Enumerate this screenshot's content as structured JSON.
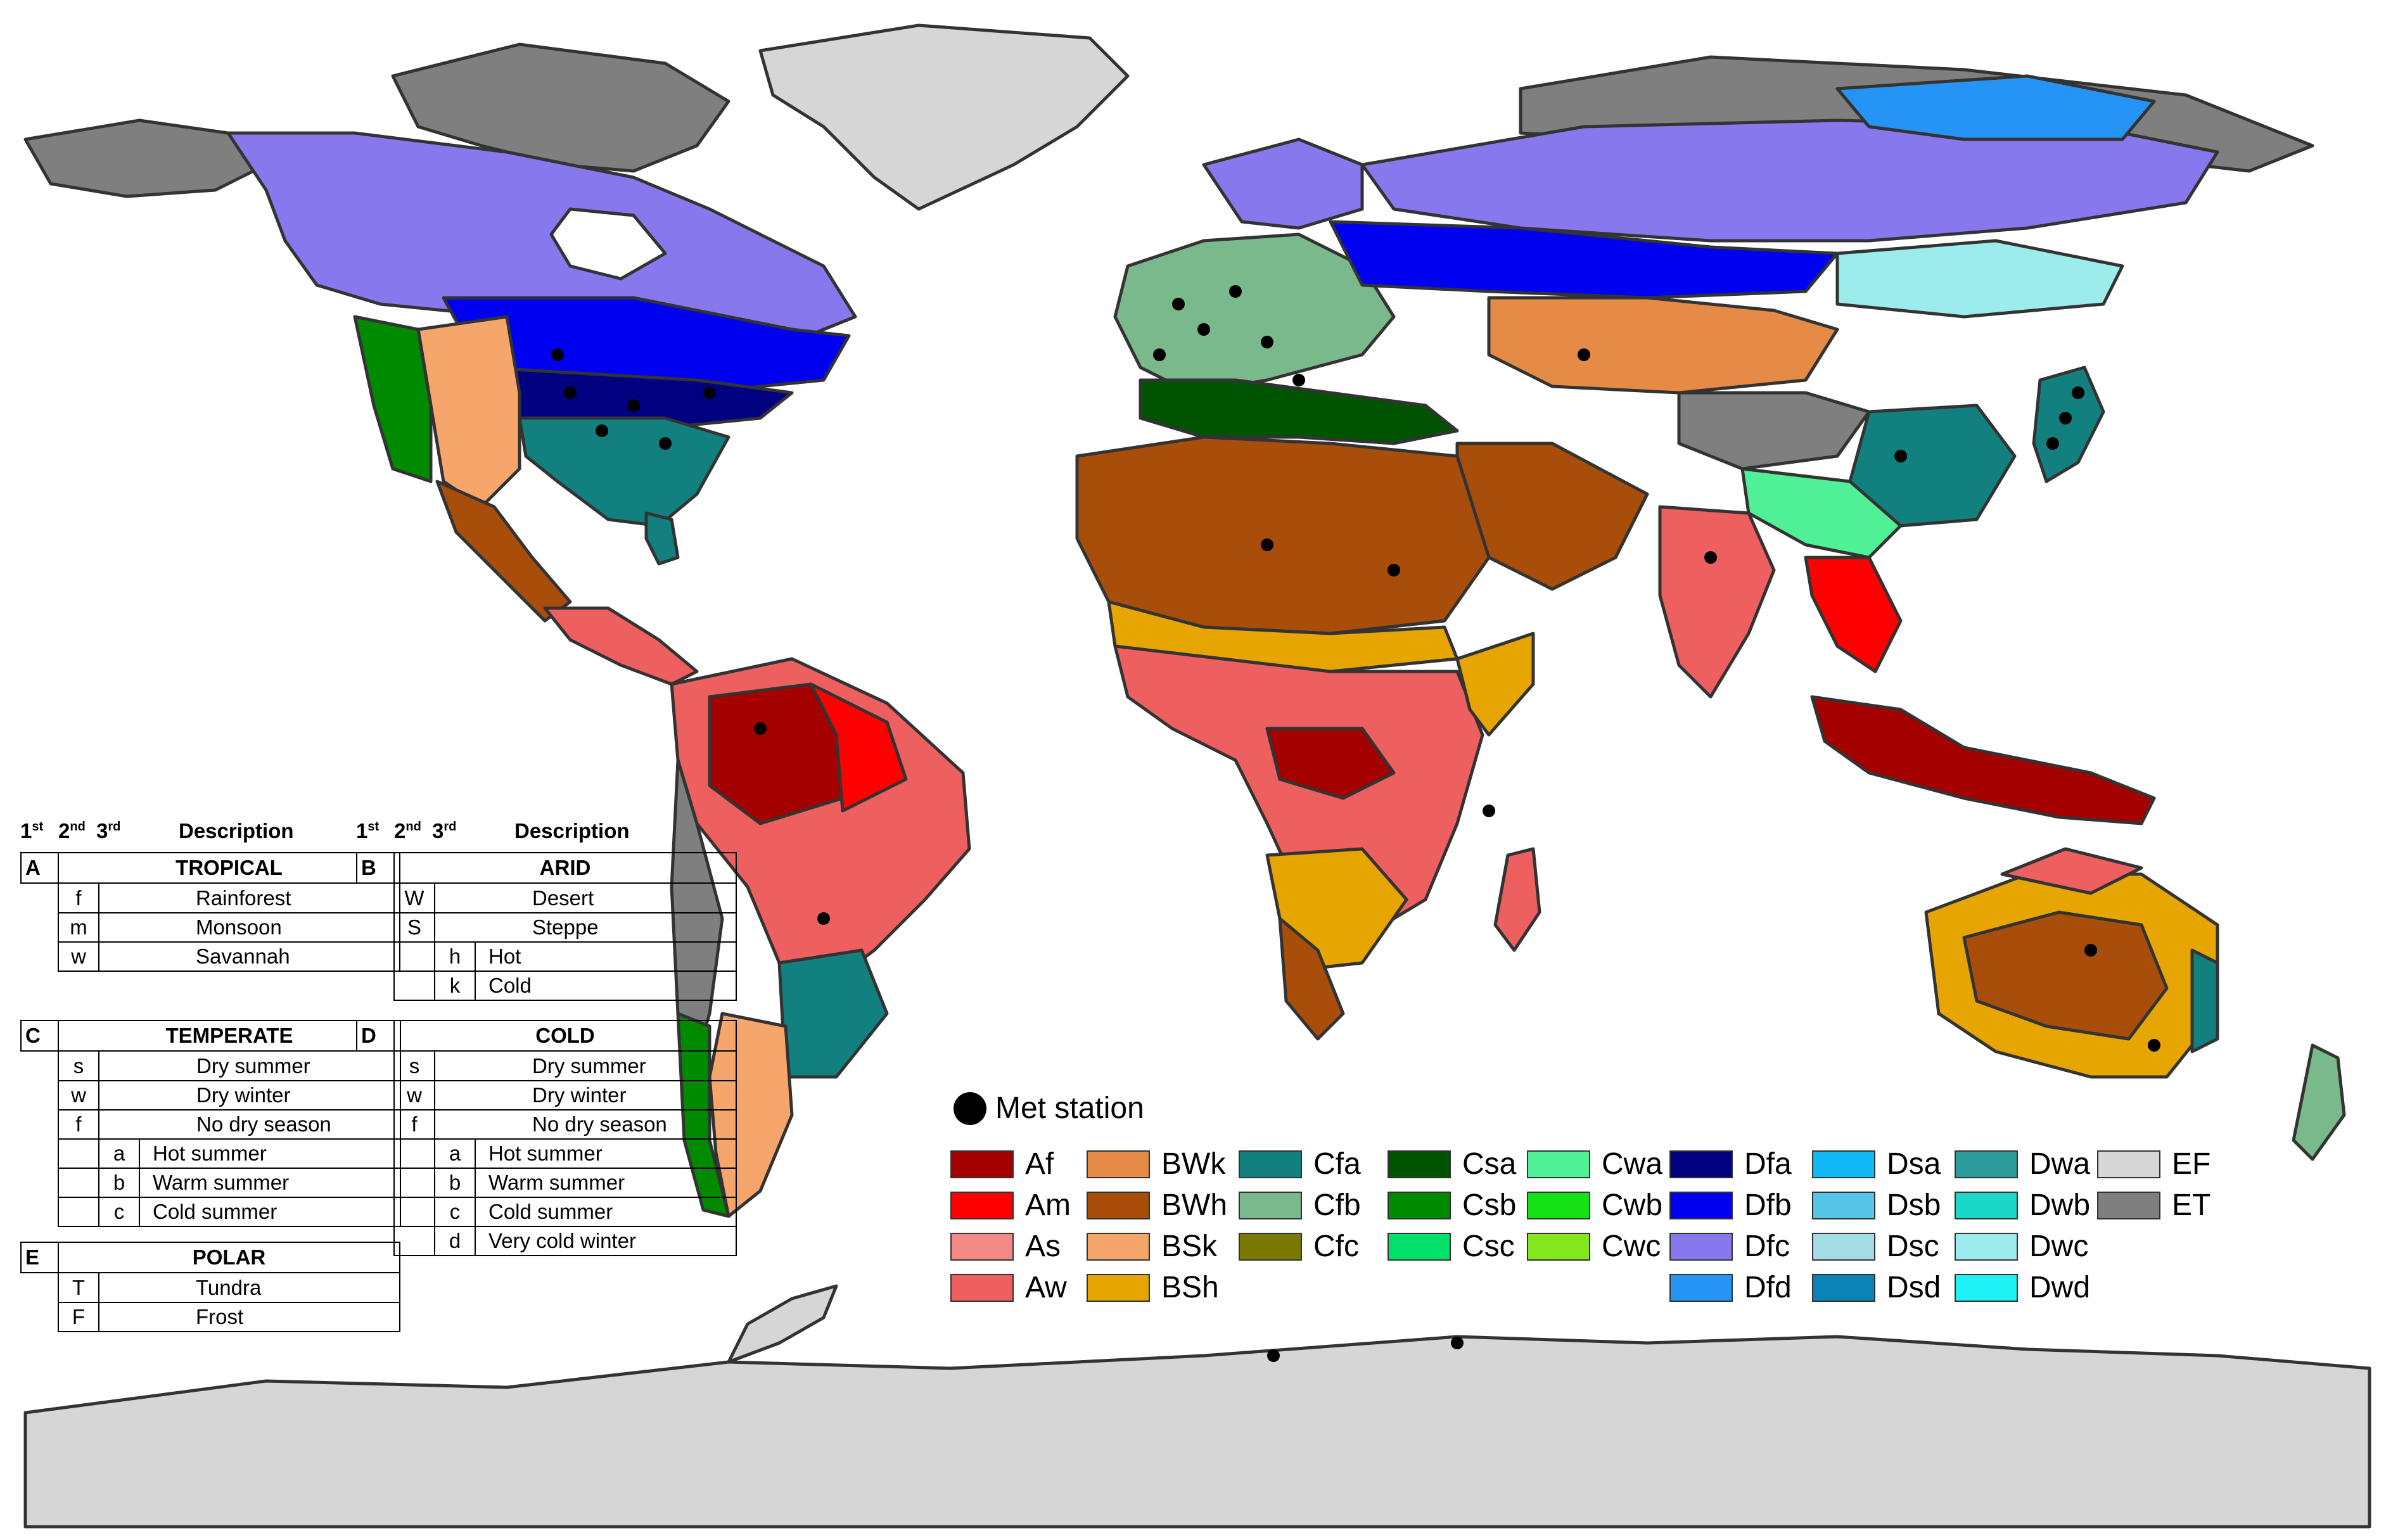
{
  "key": {
    "header_1st": "1",
    "header_1st_sup": "st",
    "header_2nd": "2",
    "header_2nd_sup": "nd",
    "header_3rd": "3",
    "header_3rd_sup": "rd",
    "header_desc": "Description",
    "groups": [
      {
        "code": "A",
        "name": "TROPICAL",
        "rows": [
          [
            "f",
            "",
            "Rainforest"
          ],
          [
            "m",
            "",
            "Monsoon"
          ],
          [
            "w",
            "",
            "Savannah"
          ]
        ]
      },
      {
        "code": "B",
        "name": "ARID",
        "rows": [
          [
            "W",
            "",
            "Desert"
          ],
          [
            "S",
            "",
            "Steppe"
          ],
          [
            "",
            "h",
            "Hot"
          ],
          [
            "",
            "k",
            "Cold"
          ]
        ]
      },
      {
        "code": "C",
        "name": "TEMPERATE",
        "rows": [
          [
            "s",
            "",
            "Dry summer"
          ],
          [
            "w",
            "",
            "Dry winter"
          ],
          [
            "f",
            "",
            "No dry season"
          ],
          [
            "",
            "a",
            "Hot summer"
          ],
          [
            "",
            "b",
            "Warm summer"
          ],
          [
            "",
            "c",
            "Cold summer"
          ]
        ]
      },
      {
        "code": "D",
        "name": "COLD",
        "rows": [
          [
            "s",
            "",
            "Dry summer"
          ],
          [
            "w",
            "",
            "Dry winter"
          ],
          [
            "f",
            "",
            "No dry season"
          ],
          [
            "",
            "a",
            "Hot summer"
          ],
          [
            "",
            "b",
            "Warm summer"
          ],
          [
            "",
            "c",
            "Cold summer"
          ],
          [
            "",
            "d",
            "Very cold winter"
          ]
        ]
      },
      {
        "code": "E",
        "name": "POLAR",
        "rows": [
          [
            "T",
            "",
            "Tundra"
          ],
          [
            "F",
            "",
            "Frost"
          ]
        ]
      }
    ]
  },
  "legend": {
    "met_station": "Met station",
    "classes": [
      {
        "code": "Af",
        "color": "#a50000"
      },
      {
        "code": "Am",
        "color": "#ff0000"
      },
      {
        "code": "As",
        "color": "#f48a86"
      },
      {
        "code": "Aw",
        "color": "#ee5f5f"
      },
      {
        "code": "BWk",
        "color": "#e58b45"
      },
      {
        "code": "BWh",
        "color": "#a84e0a"
      },
      {
        "code": "BSk",
        "color": "#f7a66b"
      },
      {
        "code": "BSh",
        "color": "#e6a500"
      },
      {
        "code": "Cfa",
        "color": "#138080"
      },
      {
        "code": "Cfb",
        "color": "#7ab98c"
      },
      {
        "code": "Cfc",
        "color": "#7a7a00"
      },
      {
        "code": "Csa",
        "color": "#005300"
      },
      {
        "code": "Csb",
        "color": "#008a00"
      },
      {
        "code": "Csc",
        "color": "#00e06a"
      },
      {
        "code": "Cwa",
        "color": "#4ff096"
      },
      {
        "code": "Cwb",
        "color": "#14e214"
      },
      {
        "code": "Cwc",
        "color": "#84e61c"
      },
      {
        "code": "Dfa",
        "color": "#000080"
      },
      {
        "code": "Dfb",
        "color": "#0000f0"
      },
      {
        "code": "Dfc",
        "color": "#8778ee"
      },
      {
        "code": "Dfd",
        "color": "#2694f5"
      },
      {
        "code": "Dsa",
        "color": "#11baf5"
      },
      {
        "code": "Dsb",
        "color": "#56c6e8"
      },
      {
        "code": "Dsc",
        "color": "#a5dde6"
      },
      {
        "code": "Dsd",
        "color": "#0b83b7"
      },
      {
        "code": "Dwa",
        "color": "#2b9b9b"
      },
      {
        "code": "Dwb",
        "color": "#1ad7c8"
      },
      {
        "code": "Dwc",
        "color": "#9cecec"
      },
      {
        "code": "Dwd",
        "color": "#1ef1f3"
      },
      {
        "code": "EF",
        "color": "#d6d6d6"
      },
      {
        "code": "ET",
        "color": "#7f7f7f"
      }
    ]
  }
}
